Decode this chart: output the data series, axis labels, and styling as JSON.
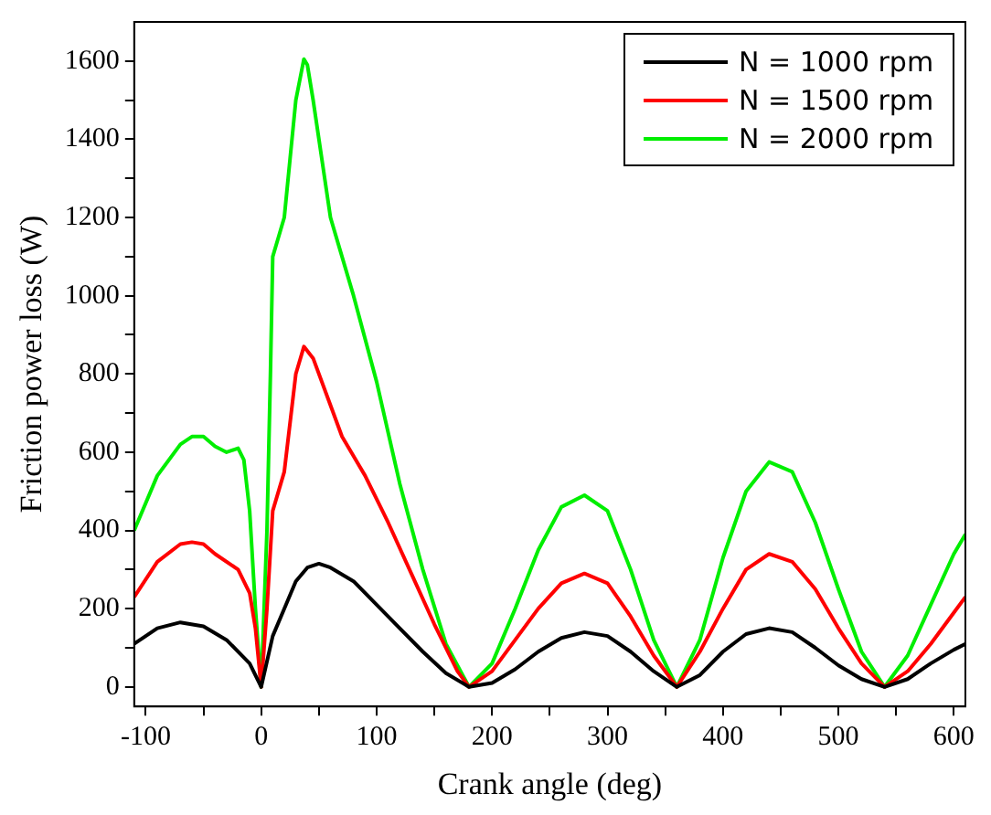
{
  "chart_data": {
    "type": "line",
    "xlabel": "Crank angle (deg)",
    "ylabel": "Friction power loss (W)",
    "xlim": [
      -110,
      610
    ],
    "ylim": [
      -50,
      1700
    ],
    "xticks": [
      -100,
      {
        "value": -50,
        "label": null
      },
      0,
      {
        "value": 50,
        "label": null
      },
      100,
      {
        "value": 150,
        "label": null
      },
      200,
      {
        "value": 250,
        "label": null
      },
      300,
      {
        "value": 350,
        "label": null
      },
      400,
      {
        "value": 450,
        "label": null
      },
      500,
      {
        "value": 550,
        "label": null
      },
      600
    ],
    "yticks": [
      0,
      {
        "value": 100,
        "label": null
      },
      200,
      {
        "value": 300,
        "label": null
      },
      400,
      {
        "value": 500,
        "label": null
      },
      600,
      {
        "value": 700,
        "label": null
      },
      800,
      {
        "value": 900,
        "label": null
      },
      1000,
      {
        "value": 1100,
        "label": null
      },
      1200,
      {
        "value": 1300,
        "label": null
      },
      1400,
      {
        "value": 1500,
        "label": null
      },
      1600
    ],
    "grid": false,
    "legend": "top right",
    "marker": "none",
    "line_style": "solid",
    "series": [
      {
        "name": "N = 1000 rpm",
        "color": "#000000",
        "x": [
          -110,
          -90,
          -70,
          -50,
          -30,
          -10,
          0,
          10,
          20,
          30,
          40,
          50,
          60,
          80,
          100,
          120,
          140,
          160,
          180,
          200,
          220,
          240,
          260,
          280,
          300,
          320,
          340,
          360,
          380,
          400,
          420,
          440,
          460,
          480,
          500,
          520,
          540,
          560,
          580,
          600,
          610
        ],
        "values": [
          110,
          150,
          165,
          155,
          120,
          60,
          0,
          130,
          200,
          270,
          305,
          315,
          305,
          270,
          210,
          150,
          90,
          35,
          0,
          10,
          45,
          90,
          125,
          140,
          130,
          90,
          40,
          0,
          30,
          90,
          135,
          150,
          140,
          100,
          55,
          20,
          0,
          20,
          60,
          95,
          110
        ]
      },
      {
        "name": "N = 1500 rpm",
        "color": "#ff0000",
        "x": [
          -110,
          -90,
          -70,
          -60,
          -50,
          -40,
          -20,
          -10,
          -5,
          0,
          5,
          10,
          20,
          30,
          37,
          45,
          60,
          70,
          90,
          110,
          130,
          150,
          170,
          180,
          200,
          220,
          240,
          260,
          280,
          300,
          320,
          340,
          360,
          380,
          400,
          420,
          440,
          460,
          480,
          500,
          520,
          540,
          560,
          580,
          600,
          610
        ],
        "values": [
          230,
          320,
          365,
          370,
          365,
          340,
          300,
          240,
          150,
          0,
          200,
          450,
          550,
          800,
          870,
          840,
          720,
          640,
          540,
          420,
          290,
          160,
          40,
          0,
          40,
          120,
          200,
          265,
          290,
          265,
          180,
          80,
          0,
          90,
          200,
          300,
          340,
          320,
          250,
          150,
          60,
          0,
          40,
          110,
          190,
          230
        ]
      },
      {
        "name": "N = 2000 rpm",
        "color": "#00ee00",
        "x": [
          -110,
          -90,
          -70,
          -60,
          -50,
          -40,
          -30,
          -20,
          -15,
          -10,
          -5,
          0,
          5,
          8,
          10,
          15,
          20,
          25,
          30,
          37,
          40,
          45,
          60,
          80,
          100,
          120,
          140,
          160,
          180,
          200,
          220,
          240,
          260,
          280,
          300,
          320,
          340,
          360,
          380,
          400,
          420,
          440,
          460,
          480,
          500,
          520,
          540,
          560,
          580,
          600,
          610
        ],
        "values": [
          400,
          540,
          620,
          640,
          640,
          615,
          600,
          610,
          580,
          450,
          200,
          0,
          400,
          800,
          1100,
          1150,
          1200,
          1350,
          1500,
          1605,
          1590,
          1500,
          1200,
          1000,
          780,
          520,
          300,
          110,
          0,
          60,
          200,
          350,
          460,
          490,
          450,
          300,
          120,
          0,
          120,
          330,
          500,
          575,
          550,
          420,
          250,
          90,
          0,
          80,
          210,
          340,
          390
        ]
      }
    ]
  }
}
